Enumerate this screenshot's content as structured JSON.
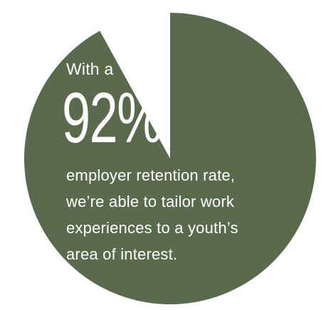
{
  "colors": {
    "slice": "#5a6b4d",
    "gap": "#ffffff",
    "text": "#ffffff"
  },
  "overlay": {
    "intro": "With a",
    "big_number": "92%",
    "lines": [
      "employer retention rate,",
      "we’re able to tailor work",
      "experiences to a youth’s",
      "area of interest."
    ]
  },
  "chart_data": {
    "type": "pie",
    "slices": [
      {
        "value": 92,
        "color": "#5a6b4d"
      },
      {
        "value": 8,
        "color": "#ffffff"
      }
    ],
    "start_angle_deg": 0,
    "direction": "clockwise-from-top"
  }
}
